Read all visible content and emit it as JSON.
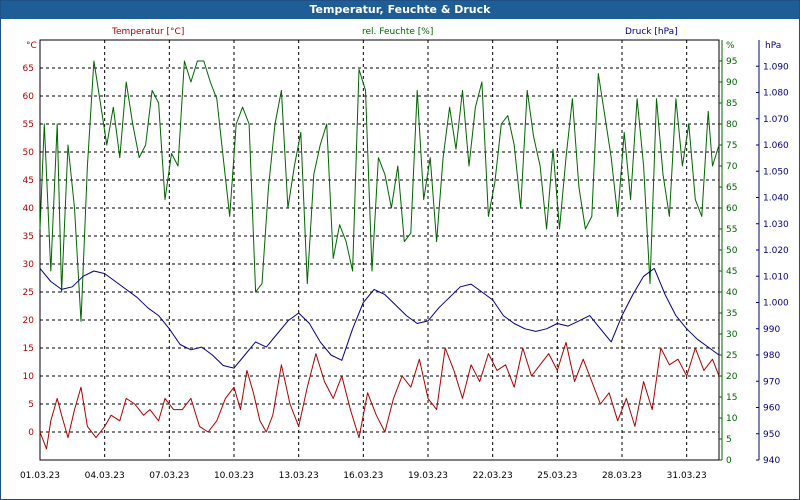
{
  "window": {
    "title": "Temperatur, Feuchte & Druck"
  },
  "colors": {
    "temperature": "#b00000",
    "humidity": "#006400",
    "pressure": "#00008b",
    "grid": "#000000",
    "title_bg": "#1f5d97"
  },
  "chart_data": {
    "type": "line",
    "title": "Temperatur, Feuchte & Druck",
    "legend": {
      "temperature": "Temperatur [°C]",
      "humidity": "rel. Feuchte [%]",
      "pressure": "Druck [hPa]"
    },
    "axes": {
      "left": {
        "unit": "°C",
        "min": -5,
        "max": 70,
        "ticks": [
          0,
          5,
          10,
          15,
          20,
          25,
          30,
          35,
          40,
          45,
          50,
          55,
          60,
          65
        ]
      },
      "right1": {
        "unit": "%",
        "min": 0,
        "max": 100,
        "ticks": [
          0,
          5,
          10,
          15,
          20,
          25,
          30,
          35,
          40,
          45,
          50,
          55,
          60,
          65,
          70,
          75,
          80,
          85,
          90,
          95
        ]
      },
      "right2": {
        "unit": "hPa",
        "min": 940,
        "max": 1100,
        "ticks": [
          940,
          950,
          960,
          970,
          980,
          990,
          1000,
          1010,
          1020,
          1030,
          1040,
          1050,
          1060,
          1070,
          1080,
          1090
        ],
        "tick_labels": [
          "940",
          "950",
          "960",
          "970",
          "980",
          "990",
          "1.000",
          "1.010",
          "1.020",
          "1.030",
          "1.040",
          "1.050",
          "1.060",
          "1.070",
          "1.080",
          "1.090"
        ]
      }
    },
    "x": {
      "day_min": 1,
      "day_max": 32.5,
      "tick_days": [
        1,
        4,
        7,
        10,
        13,
        16,
        19,
        22,
        25,
        28,
        31
      ],
      "tick_labels": [
        "01.03.23",
        "04.03.23",
        "07.03.23",
        "10.03.23",
        "13.03.23",
        "16.03.23",
        "19.03.23",
        "22.03.23",
        "25.03.23",
        "28.03.23",
        "31.03.23"
      ]
    },
    "series": [
      {
        "name": "Temperatur [°C]",
        "axis": "left",
        "x": [
          1,
          1.3,
          1.5,
          1.8,
          2.0,
          2.3,
          2.6,
          2.9,
          3.2,
          3.6,
          4.0,
          4.3,
          4.7,
          5.0,
          5.4,
          5.8,
          6.1,
          6.5,
          6.8,
          7.2,
          7.6,
          8.0,
          8.4,
          8.8,
          9.2,
          9.6,
          10.0,
          10.3,
          10.6,
          10.9,
          11.2,
          11.5,
          11.8,
          12.2,
          12.6,
          13.0,
          13.4,
          13.8,
          14.2,
          14.6,
          15.0,
          15.4,
          15.8,
          16.2,
          16.6,
          17.0,
          17.4,
          17.8,
          18.2,
          18.6,
          19.0,
          19.4,
          19.8,
          20.2,
          20.6,
          21.0,
          21.4,
          21.8,
          22.2,
          22.6,
          23.0,
          23.4,
          23.8,
          24.2,
          24.6,
          25.0,
          25.4,
          25.8,
          26.2,
          26.6,
          27.0,
          27.4,
          27.8,
          28.2,
          28.6,
          29.0,
          29.4,
          29.8,
          30.2,
          30.6,
          31.0,
          31.4,
          31.8,
          32.2,
          32.5
        ],
        "values": [
          0,
          -3,
          2,
          6,
          3,
          -1,
          4,
          8,
          1,
          -1,
          1,
          3,
          2,
          6,
          5,
          3,
          4,
          2,
          6,
          4,
          4,
          6,
          1,
          0,
          2,
          6,
          8,
          4,
          11,
          7,
          2,
          0,
          3,
          12,
          5,
          1,
          8,
          14,
          9,
          6,
          10,
          4,
          -1,
          7,
          3,
          0,
          6,
          10,
          8,
          13,
          6,
          4,
          15,
          11,
          6,
          12,
          9,
          14,
          11,
          12,
          8,
          15,
          10,
          12,
          14,
          11,
          16,
          9,
          13,
          9,
          5,
          7,
          2,
          6,
          1,
          9,
          4,
          15,
          12,
          13,
          10,
          15,
          11,
          13,
          10
        ],
        "color": "#b00000"
      },
      {
        "name": "rel. Feuchte [%]",
        "axis": "right1",
        "x": [
          1,
          1.2,
          1.5,
          1.8,
          2.0,
          2.3,
          2.6,
          2.9,
          3.2,
          3.5,
          3.8,
          4.1,
          4.4,
          4.7,
          5.0,
          5.3,
          5.6,
          5.9,
          6.2,
          6.5,
          6.8,
          7.1,
          7.4,
          7.7,
          8.0,
          8.3,
          8.6,
          8.9,
          9.2,
          9.5,
          9.8,
          10.1,
          10.4,
          10.7,
          11.0,
          11.3,
          11.6,
          11.9,
          12.2,
          12.5,
          12.8,
          13.1,
          13.4,
          13.7,
          14.0,
          14.3,
          14.6,
          14.9,
          15.2,
          15.5,
          15.8,
          16.1,
          16.4,
          16.7,
          17.0,
          17.3,
          17.6,
          17.9,
          18.2,
          18.5,
          18.8,
          19.1,
          19.4,
          19.7,
          20.0,
          20.3,
          20.6,
          20.9,
          21.2,
          21.5,
          21.8,
          22.1,
          22.4,
          22.7,
          23.0,
          23.3,
          23.6,
          23.9,
          24.2,
          24.5,
          24.8,
          25.1,
          25.4,
          25.7,
          26.0,
          26.3,
          26.6,
          26.9,
          27.2,
          27.5,
          27.8,
          28.1,
          28.4,
          28.7,
          29.0,
          29.3,
          29.6,
          29.9,
          30.2,
          30.5,
          30.8,
          31.1,
          31.4,
          31.7,
          32.0,
          32.2,
          32.5
        ],
        "values": [
          55,
          80,
          45,
          80,
          40,
          75,
          60,
          33,
          70,
          95,
          85,
          75,
          84,
          72,
          90,
          80,
          72,
          75,
          88,
          85,
          62,
          73,
          70,
          95,
          90,
          95,
          95,
          90,
          86,
          72,
          58,
          80,
          84,
          80,
          40,
          42,
          65,
          80,
          88,
          60,
          70,
          78,
          42,
          68,
          75,
          80,
          48,
          56,
          52,
          45,
          93,
          88,
          45,
          72,
          68,
          60,
          70,
          52,
          54,
          88,
          62,
          72,
          52,
          72,
          84,
          74,
          88,
          70,
          84,
          90,
          58,
          66,
          80,
          82,
          75,
          60,
          88,
          77,
          70,
          55,
          74,
          55,
          72,
          86,
          65,
          55,
          58,
          92,
          82,
          72,
          58,
          78,
          62,
          86,
          70,
          42,
          86,
          68,
          58,
          86,
          70,
          80,
          62,
          58,
          83,
          70,
          75
        ],
        "color": "#006400"
      },
      {
        "name": "Druck [hPa]",
        "axis": "right2",
        "x": [
          1,
          1.5,
          2.0,
          2.5,
          3.0,
          3.5,
          4.0,
          4.5,
          5.0,
          5.5,
          6.0,
          6.5,
          7.0,
          7.5,
          8.0,
          8.5,
          9.0,
          9.5,
          10.0,
          10.5,
          11.0,
          11.5,
          12.0,
          12.5,
          13.0,
          13.5,
          14.0,
          14.5,
          15.0,
          15.5,
          16.0,
          16.5,
          17.0,
          17.5,
          18.0,
          18.5,
          19.0,
          19.5,
          20.0,
          20.5,
          21.0,
          21.5,
          22.0,
          22.5,
          23.0,
          23.5,
          24.0,
          24.5,
          25.0,
          25.5,
          26.0,
          26.5,
          27.0,
          27.5,
          28.0,
          28.5,
          29.0,
          29.5,
          30.0,
          30.5,
          31.0,
          31.5,
          32.0,
          32.5
        ],
        "values": [
          1013,
          1008,
          1005,
          1006,
          1010,
          1012,
          1011,
          1008,
          1005,
          1002,
          998,
          995,
          990,
          984,
          982,
          983,
          980,
          976,
          975,
          980,
          985,
          983,
          988,
          993,
          996,
          992,
          985,
          980,
          978,
          990,
          1000,
          1005,
          1003,
          999,
          995,
          992,
          993,
          998,
          1002,
          1006,
          1007,
          1004,
          1001,
          995,
          992,
          990,
          989,
          990,
          992,
          991,
          993,
          995,
          990,
          985,
          995,
          1003,
          1010,
          1013,
          1003,
          995,
          990,
          986,
          983,
          980
        ],
        "color": "#00008b"
      }
    ]
  }
}
